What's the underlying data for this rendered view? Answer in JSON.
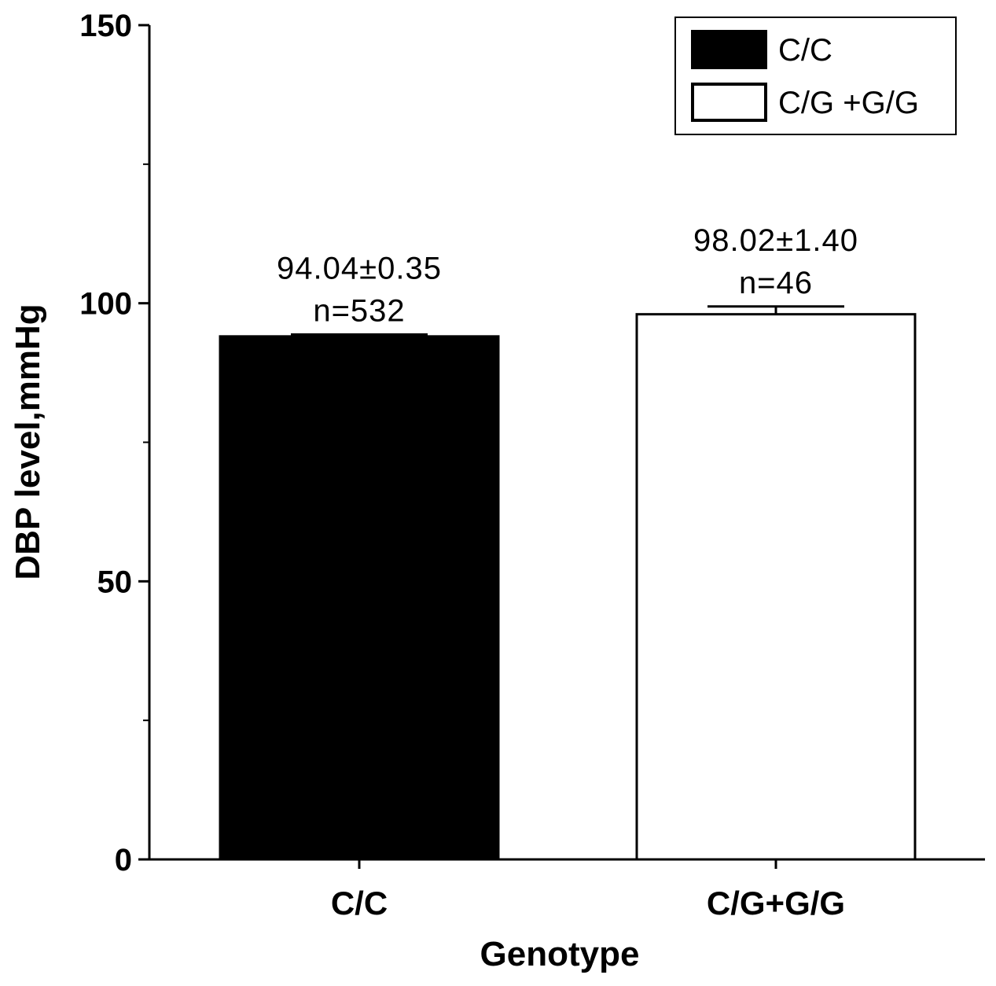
{
  "chart_data": {
    "type": "bar",
    "categories": [
      "C/C",
      "C/G+G/G"
    ],
    "values": [
      94.04,
      98.02
    ],
    "errors": [
      0.35,
      1.4
    ],
    "bar_labels": [
      "94.04±0.35",
      "98.02±1.40"
    ],
    "n_labels": [
      "n=532",
      "n=46"
    ],
    "colors": [
      "#000000",
      "#ffffff"
    ],
    "xlabel": "Genotype",
    "ylabel": "DBP level,mmHg",
    "ylim": [
      0,
      150
    ],
    "yticks": [
      0,
      50,
      100,
      150
    ],
    "grid": false,
    "legend": {
      "position": "top-right",
      "entries": [
        {
          "label": "C/C",
          "color": "#000000"
        },
        {
          "label": "C/G +G/G",
          "color": "#ffffff"
        }
      ]
    }
  }
}
